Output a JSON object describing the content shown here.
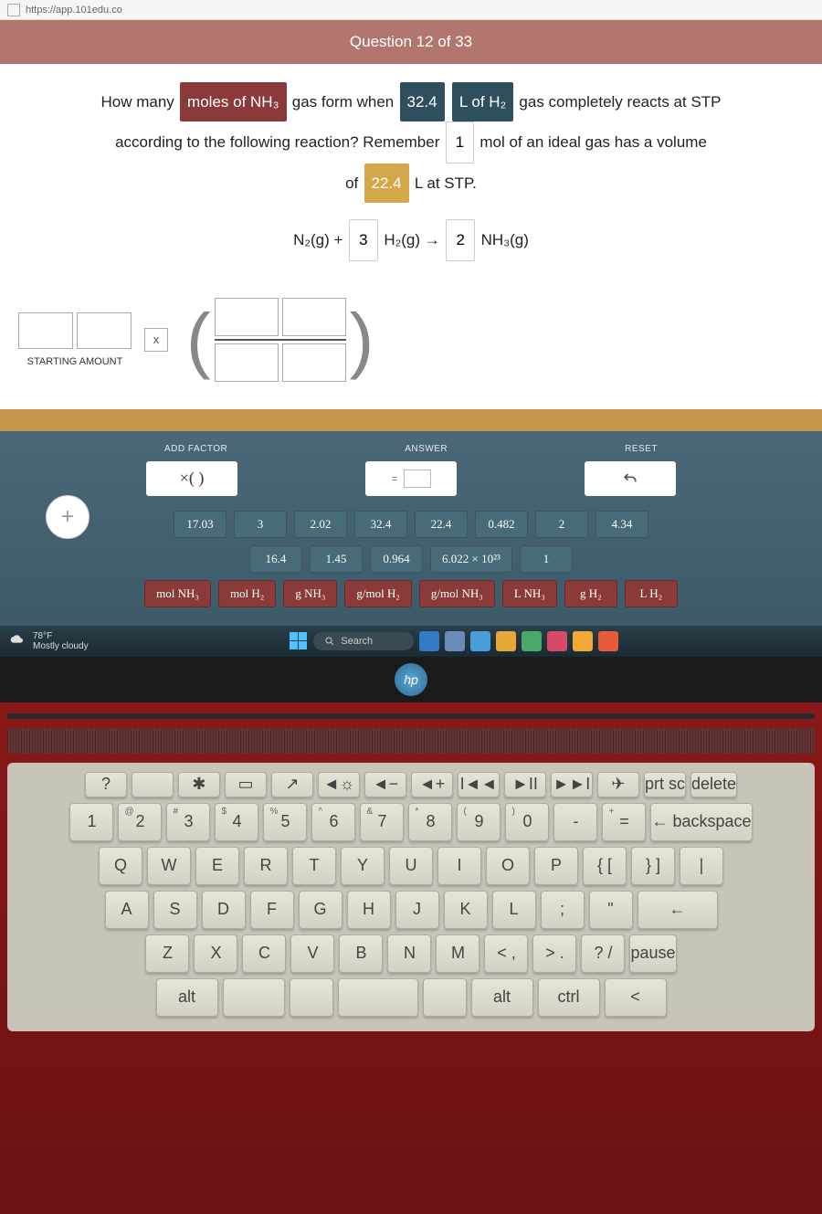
{
  "browser": {
    "url_fragment": "https://app.101edu.co"
  },
  "header": {
    "title": "Question 12 of 33"
  },
  "question": {
    "parts": {
      "p1": "How many",
      "box1": "moles of NH₃",
      "p2": "gas form when",
      "box2": "32.4",
      "box3": "L of H₂",
      "p3": "gas completely reacts at STP",
      "p4": "according to the following reaction? Remember",
      "box4": "1",
      "p5": "mol of an ideal gas has a volume",
      "p6": "of",
      "box5": "22.4",
      "p7": "L at STP."
    },
    "equation": {
      "t1": "N₂(g) +",
      "c1": "3",
      "t2": "H₂(g) →",
      "c2": "2",
      "t3": "NH₃(g)"
    }
  },
  "starting_label": "STARTING AMOUNT",
  "x_label": "x",
  "tools": {
    "headers": {
      "add": "ADD FACTOR",
      "answer": "ANSWER",
      "reset": "RESET"
    },
    "factor_paren": "×( )",
    "answer_eq": "=",
    "reset_symbol": "↶"
  },
  "values": {
    "row1": [
      "17.03",
      "3",
      "2.02",
      "32.4",
      "22.4",
      "0.482",
      "2",
      "4.34"
    ],
    "row2": [
      "16.4",
      "1.45",
      "0.964",
      "6.022 × 10²³",
      "1"
    ],
    "row3": [
      "mol NH₃",
      "mol H₂",
      "g NH₃",
      "g/mol H₂",
      "g/mol NH₃",
      "L NH₃",
      "g H₂",
      "L H₂"
    ]
  },
  "colors": {
    "header_bg": "#b1776e",
    "maroon": "#8b3a3a",
    "teal": "#476b78",
    "dark_teal": "#2f4f5f",
    "gold": "#d4a84a",
    "tools_bg": "#4a6878"
  },
  "add_button": "+",
  "taskbar": {
    "temp": "78°F",
    "weather": "Mostly cloudy",
    "search": "Search"
  },
  "hp": "hp",
  "keyboard": {
    "fn_row": [
      {
        "sym": "?",
        "sub": ""
      },
      {
        "sym": "",
        "sub": ""
      },
      {
        "sym": "✱",
        "sub": ""
      },
      {
        "sym": "▭",
        "sub": ""
      },
      {
        "sym": "↗",
        "sub": ""
      },
      {
        "sym": "◄☼",
        "sub": ""
      },
      {
        "sym": "◄−",
        "sub": ""
      },
      {
        "sym": "◄+",
        "sub": ""
      },
      {
        "sym": "I◄◄",
        "sub": ""
      },
      {
        "sym": "►II",
        "sub": ""
      },
      {
        "sym": "►►I",
        "sub": ""
      },
      {
        "sym": "✈",
        "sub": ""
      },
      {
        "sym": "prt sc",
        "sub": ""
      },
      {
        "sym": "delete",
        "sub": ""
      }
    ],
    "num_row": [
      {
        "top": "",
        "main": "1"
      },
      {
        "top": "@",
        "main": "2"
      },
      {
        "top": "#",
        "main": "3"
      },
      {
        "top": "$",
        "main": "4"
      },
      {
        "top": "%",
        "main": "5"
      },
      {
        "top": "^",
        "main": "6"
      },
      {
        "top": "&",
        "main": "7"
      },
      {
        "top": "*",
        "main": "8"
      },
      {
        "top": "(",
        "main": "9"
      },
      {
        "top": ")",
        "main": "0"
      },
      {
        "top": "",
        "main": "-"
      },
      {
        "top": "+",
        "main": "="
      },
      {
        "top": "",
        "main": "← backspace",
        "wide": true
      }
    ],
    "row_q": [
      "Q",
      "W",
      "E",
      "R",
      "T",
      "Y",
      "U",
      "I",
      "O",
      "P",
      "{  [",
      "}  ]",
      "|"
    ],
    "row_a": [
      "A",
      "S",
      "D",
      "F",
      "G",
      "H",
      "J",
      "K",
      "L",
      ";",
      "\"",
      "←"
    ],
    "row_z": [
      "Z",
      "X",
      "C",
      "V",
      "B",
      "N",
      "M",
      "<  ,",
      ">  .",
      "?  /",
      "pause"
    ],
    "row_bottom": [
      "alt",
      "",
      "",
      "",
      "",
      "alt",
      "ctrl",
      "<"
    ]
  }
}
